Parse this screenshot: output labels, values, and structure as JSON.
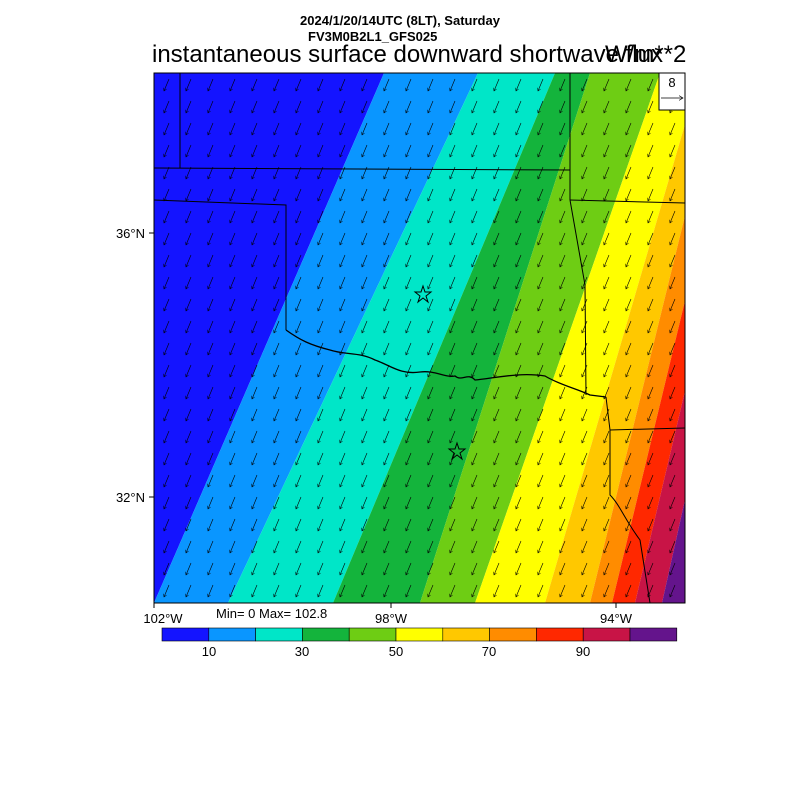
{
  "header": {
    "datetime": "2024/1/20/14UTC (8LT), Saturday",
    "model": "FV3M0B2L1_GFS025",
    "variable": "instantaneous surface downward shortwave flux",
    "units": "W/m**2"
  },
  "map": {
    "lat_labels": [
      "36°N",
      "32°N"
    ],
    "lon_labels": [
      "102°W",
      "98°W",
      "94°W"
    ],
    "min_max": "Min= 0 Max= 102.8",
    "markers": [
      "star",
      "star"
    ]
  },
  "vector_ref": {
    "value": "8"
  },
  "colorbar": {
    "colors": [
      "#1414ff",
      "#0a96ff",
      "#00e6c8",
      "#14b43c",
      "#6ecd14",
      "#ffff00",
      "#ffc800",
      "#ff8c00",
      "#ff2800",
      "#c81446",
      "#64148c"
    ],
    "tick_labels": [
      "10",
      "30",
      "50",
      "70",
      "90"
    ]
  },
  "chart_data": {
    "type": "heatmap",
    "title": "instantaneous surface downward shortwave flux",
    "units": "W/m**2",
    "bins": [
      0,
      10,
      20,
      30,
      40,
      50,
      60,
      70,
      80,
      90,
      100
    ],
    "min": 0,
    "max": 102.8
  }
}
